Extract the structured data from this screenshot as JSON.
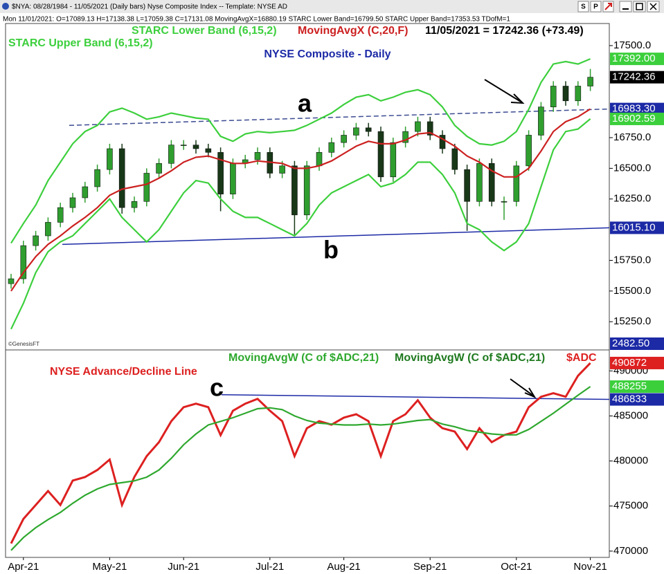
{
  "window": {
    "title": "$NYA: 08/28/1984 - 11/05/2021 (Daily bars)   Nyse Composite Index  --  Template: NYSE AD",
    "buttons": [
      "S",
      "P"
    ]
  },
  "status": "Mon  11/01/2021: O=17089.13 H=17138.38 L=17059.38 C=17131.08 MovingAvgX=16880.19 STARC Lower Band=16799.50 STARC Upper Band=17353.53 TDofM=1",
  "chart_data": [
    {
      "type": "candlestick",
      "title": "NYSE Composite - Daily",
      "header_value": "11/05/2021 = 17242.36 (+73.49)",
      "watermark": "©GenesisFT",
      "up_color": "#2f9e2f",
      "down_color": "#183818",
      "categories": [
        null,
        "Apr-21",
        null,
        null,
        null,
        null,
        null,
        null,
        "May-21",
        null,
        null,
        null,
        null,
        null,
        "Jun-21",
        null,
        null,
        null,
        null,
        null,
        null,
        "Jul-21",
        null,
        null,
        null,
        null,
        null,
        "Aug-21",
        null,
        null,
        null,
        null,
        null,
        null,
        "Sep-21",
        null,
        null,
        null,
        null,
        null,
        null,
        "Oct-21",
        null,
        null,
        null,
        null,
        null,
        "Nov-21"
      ],
      "open": [
        15560,
        15600,
        15870,
        15950,
        16060,
        16180,
        16260,
        16350,
        16490,
        16660,
        16180,
        16230,
        16460,
        16540,
        16690,
        16690,
        16660,
        16630,
        16290,
        16540,
        16570,
        16630,
        16460,
        16520,
        16120,
        16520,
        16630,
        16710,
        16770,
        16830,
        16800,
        16430,
        16710,
        16800,
        16880,
        16770,
        16660,
        16490,
        16230,
        16540,
        16230,
        16230,
        16520,
        16770,
        17000,
        17170,
        17050,
        17170
      ],
      "high": [
        15640,
        15910,
        15990,
        16100,
        16220,
        16300,
        16390,
        16530,
        16700,
        16700,
        16270,
        16500,
        16580,
        16730,
        16730,
        16730,
        16700,
        16670,
        16580,
        16610,
        16670,
        16670,
        16560,
        16560,
        16560,
        16670,
        16750,
        16810,
        16870,
        16870,
        16840,
        16750,
        16840,
        16920,
        16920,
        16810,
        16700,
        16530,
        16580,
        16580,
        16270,
        16560,
        16810,
        17040,
        17210,
        17210,
        17210,
        17310
      ],
      "low": [
        15520,
        15560,
        15830,
        15910,
        16020,
        16140,
        16220,
        16310,
        16450,
        16130,
        16140,
        16190,
        16420,
        16500,
        16650,
        16620,
        16590,
        16150,
        16250,
        16500,
        16530,
        16420,
        16420,
        15960,
        16080,
        16480,
        16590,
        16670,
        16730,
        16760,
        16390,
        16390,
        16670,
        16760,
        16730,
        16620,
        16450,
        15990,
        16190,
        16190,
        16080,
        16190,
        16480,
        16730,
        16960,
        17010,
        17010,
        17130
      ],
      "close": [
        15600,
        15870,
        15950,
        16060,
        16180,
        16260,
        16350,
        16490,
        16660,
        16180,
        16230,
        16460,
        16540,
        16690,
        16690,
        16660,
        16630,
        16290,
        16540,
        16570,
        16630,
        16460,
        16520,
        16120,
        16520,
        16630,
        16710,
        16770,
        16830,
        16800,
        16430,
        16710,
        16800,
        16880,
        16770,
        16660,
        16490,
        16230,
        16540,
        16230,
        16230,
        16520,
        16770,
        17000,
        17170,
        17050,
        17170,
        17242.36
      ],
      "series": [
        {
          "name": "STARC Upper Band (6,15,2)",
          "color": "#3ccf3c",
          "values": [
            15890,
            16050,
            16200,
            16400,
            16550,
            16700,
            16800,
            16850,
            16960,
            16990,
            16950,
            16900,
            16920,
            16950,
            16930,
            16910,
            16900,
            16760,
            16720,
            16780,
            16800,
            16790,
            16800,
            16810,
            16850,
            16900,
            16950,
            17020,
            17080,
            17100,
            17050,
            17080,
            17120,
            17140,
            17100,
            17000,
            16850,
            16760,
            16700,
            16690,
            16720,
            16800,
            16980,
            17200,
            17350,
            17370,
            17350,
            17392
          ]
        },
        {
          "name": "STARC Lower Band (6,15,2)",
          "color": "#3ccf3c",
          "values": [
            15190,
            15400,
            15650,
            15820,
            15900,
            15950,
            16050,
            16150,
            16250,
            16100,
            16000,
            15900,
            16000,
            16150,
            16300,
            16400,
            16380,
            16250,
            16150,
            16100,
            16100,
            16050,
            16000,
            15950,
            16050,
            16200,
            16300,
            16350,
            16400,
            16450,
            16350,
            16380,
            16450,
            16550,
            16550,
            16450,
            16300,
            16050,
            16000,
            15900,
            15830,
            15900,
            16050,
            16350,
            16650,
            16800,
            16820,
            16902.59
          ]
        },
        {
          "name": "MovingAvgX (C,20,F)",
          "color": "#cc2020",
          "values": [
            15500,
            15650,
            15780,
            15880,
            15950,
            16030,
            16100,
            16180,
            16280,
            16330,
            16350,
            16370,
            16420,
            16480,
            16550,
            16590,
            16600,
            16570,
            16540,
            16540,
            16560,
            16550,
            16540,
            16500,
            16500,
            16520,
            16560,
            16620,
            16680,
            16720,
            16700,
            16700,
            16730,
            16780,
            16790,
            16740,
            16680,
            16600,
            16550,
            16480,
            16430,
            16430,
            16500,
            16640,
            16800,
            16880,
            16920,
            16983.3
          ]
        }
      ],
      "ylim": [
        15020,
        17680
      ],
      "yticks": [
        {
          "value": 17500,
          "label": "17500.0"
        },
        {
          "value": 16750,
          "label": "16750.0"
        },
        {
          "value": 16500,
          "label": "16500.0"
        },
        {
          "value": 16250,
          "label": "16250.0"
        },
        {
          "value": 15750,
          "label": "15750.0"
        },
        {
          "value": 15500,
          "label": "15500.0"
        },
        {
          "value": 15250,
          "label": "15250.0"
        }
      ],
      "value_boxes": [
        {
          "value": 17392,
          "label": "17392.00",
          "color": "#3ccf3c"
        },
        {
          "value": 17242.36,
          "label": "17242.36",
          "color": "#000000"
        },
        {
          "value": 16983.3,
          "label": "16983.30",
          "color": "#1c2aa6"
        },
        {
          "value": 16902.59,
          "label": "16902.59",
          "color": "#3ccf3c"
        },
        {
          "value": 16015.1,
          "label": "16015.10",
          "color": "#1c2aa6"
        }
      ],
      "footer_box": {
        "label": "2482.50",
        "color": "#1c2aa6"
      },
      "trendlines": [
        {
          "label": "a",
          "values": [
            16850,
            16983.3
          ],
          "color": "#3a4a90",
          "dashed": true
        },
        {
          "label": "b",
          "values": [
            15880,
            16015.1
          ],
          "color": "#1c2aa6",
          "dashed": false
        }
      ]
    },
    {
      "type": "line",
      "title": "NYSE Advance/Decline Line",
      "header_note": "MovingAvgW (C of $ADC,21)",
      "categories": [
        null,
        "Apr-21",
        null,
        null,
        null,
        null,
        null,
        null,
        "May-21",
        null,
        null,
        null,
        null,
        null,
        "Jun-21",
        null,
        null,
        null,
        null,
        null,
        null,
        "Jul-21",
        null,
        null,
        null,
        null,
        null,
        "Aug-21",
        null,
        null,
        null,
        null,
        null,
        null,
        "Sep-21",
        null,
        null,
        null,
        null,
        null,
        null,
        "Oct-21",
        null,
        null,
        null,
        null,
        null,
        "Nov-21"
      ],
      "series": [
        {
          "name": "$ADC",
          "color": "#dd2020",
          "values": [
            470850,
            473570,
            475120,
            476670,
            475120,
            477830,
            478220,
            479000,
            480160,
            475120,
            478220,
            480540,
            482090,
            484420,
            485970,
            486360,
            485970,
            482870,
            485580,
            486360,
            486900,
            485580,
            484420,
            480540,
            483640,
            484420,
            484030,
            484810,
            485190,
            484420,
            480540,
            484420,
            485190,
            486740,
            484810,
            483640,
            483260,
            481320,
            483640,
            482090,
            482870,
            483260,
            485970,
            487130,
            487520,
            487130,
            489460,
            490872
          ]
        },
        {
          "name": "MovingAvgW (C of $ADC,21)",
          "color": "#2ea82e",
          "values": [
            470080,
            471500,
            472600,
            473500,
            474300,
            475300,
            476200,
            476900,
            477400,
            477600,
            477800,
            478200,
            479000,
            480300,
            481800,
            483000,
            484000,
            484400,
            484800,
            485300,
            485800,
            485900,
            485700,
            485000,
            484500,
            484200,
            484100,
            484000,
            484000,
            484100,
            484000,
            484100,
            484300,
            484500,
            484600,
            484100,
            483800,
            483400,
            483200,
            483000,
            482900,
            482900,
            483500,
            484400,
            485300,
            486300,
            487300,
            488255
          ]
        }
      ],
      "ylim": [
        469300,
        492325
      ],
      "yticks": [
        490000,
        485000,
        480000,
        475000,
        470000
      ],
      "value_boxes": [
        {
          "value": 490872,
          "label": "490872",
          "color": "#dd2020"
        },
        {
          "value": 488255,
          "label": "488255",
          "color": "#3ccf3c"
        },
        {
          "value": 486833,
          "label": "486833",
          "color": "#1c2aa6"
        }
      ],
      "trendlines": [
        {
          "label": "c",
          "values": [
            487360,
            486833
          ],
          "color": "#1c2aa6",
          "dashed": false
        }
      ]
    }
  ]
}
